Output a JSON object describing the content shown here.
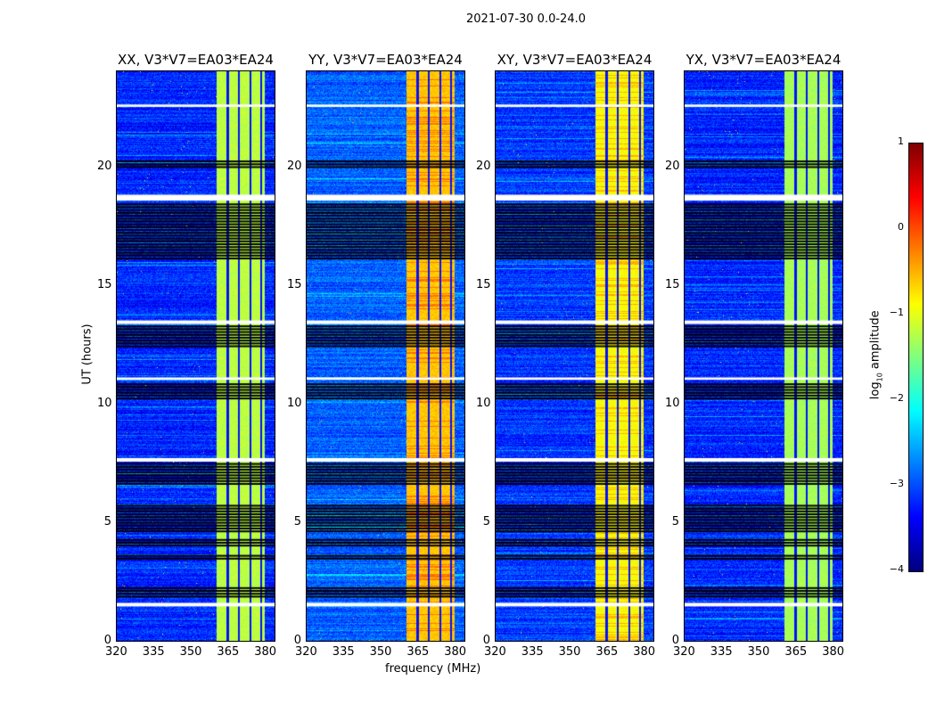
{
  "suptitle": "2021-07-30 0.0-24.0",
  "chart_data": {
    "type": "heatmap",
    "xlabel": "frequency (MHz)",
    "ylabel": "UT (hours)",
    "xlim": [
      320,
      383.5
    ],
    "ylim": [
      0,
      24
    ],
    "xticks": [
      "320",
      "335",
      "350",
      "365",
      "380"
    ],
    "xtick_values": [
      320,
      335,
      350,
      365,
      380
    ],
    "yticks": [
      "0",
      "5",
      "10",
      "15",
      "20"
    ],
    "ytick_values": [
      0,
      5,
      10,
      15,
      20
    ],
    "colorbar": {
      "label": "log10 amplitude",
      "label_main": "log",
      "label_sub": "10",
      "label_rest": " amplitude",
      "range": [
        -4,
        1
      ],
      "ticks": [
        "−4",
        "−3",
        "−2",
        "−1",
        "0",
        "1"
      ],
      "tick_values": [
        -4,
        -3,
        -2,
        -1,
        0,
        1
      ],
      "colormap": "jet"
    },
    "band_MHz": [
      360,
      379.5
    ],
    "channel_edges_MHz": [
      364.5,
      369,
      373.5,
      378
    ],
    "flagged_black_hours": [
      [
        1.85,
        2.25
      ],
      [
        3.45,
        3.6
      ],
      [
        4.0,
        4.3
      ],
      [
        4.6,
        5.8
      ],
      [
        6.6,
        7.5
      ],
      [
        10.2,
        10.9
      ],
      [
        12.4,
        13.3
      ],
      [
        16.1,
        18.5
      ],
      [
        19.95,
        20.2
      ]
    ],
    "gap_white_hours": [
      [
        1.45,
        1.6
      ],
      [
        7.55,
        7.7
      ],
      [
        11.0,
        11.1
      ],
      [
        13.35,
        13.5
      ],
      [
        18.55,
        18.8
      ],
      [
        22.5,
        22.6
      ]
    ],
    "panels": [
      {
        "title": "XX, V3*V7=EA03*EA24",
        "background_log": -3.2,
        "band_log": -1.2
      },
      {
        "title": "YY, V3*V7=EA03*EA24",
        "background_log": -2.9,
        "band_log": -0.6
      },
      {
        "title": "XY, V3*V7=EA03*EA24",
        "background_log": -3.1,
        "band_log": -0.9
      },
      {
        "title": "YX, V3*V7=EA03*EA24",
        "background_log": -3.2,
        "band_log": -1.3
      }
    ]
  }
}
